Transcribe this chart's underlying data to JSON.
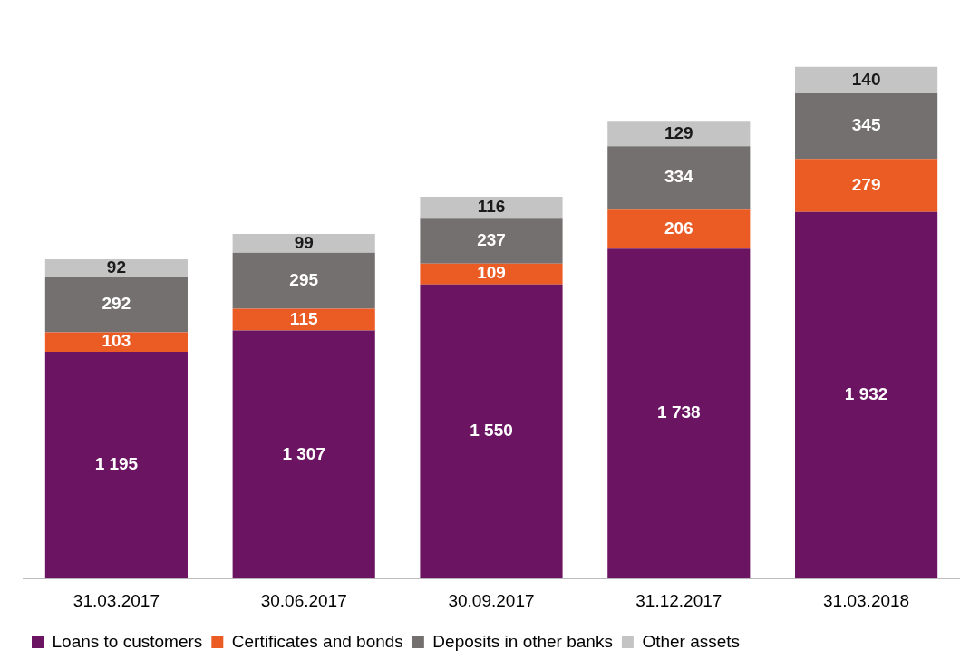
{
  "chart_data": {
    "type": "bar",
    "stacked": true,
    "categories": [
      "31.03.2017",
      "30.06.2017",
      "30.09.2017",
      "31.12.2017",
      "31.03.2018"
    ],
    "series": [
      {
        "name": "Loans to customers",
        "color": "#6b1562",
        "values": [
          1195,
          1307,
          1550,
          1738,
          1932
        ],
        "value_labels": [
          "1 195",
          "1 307",
          "1 550",
          "1 738",
          "1 932"
        ]
      },
      {
        "name": "Certificates and bonds",
        "color": "#eb5b24",
        "values": [
          103,
          115,
          109,
          206,
          279
        ],
        "value_labels": [
          "103",
          "115",
          "109",
          "206",
          "279"
        ]
      },
      {
        "name": "Deposits in other banks",
        "color": "#757070",
        "values": [
          292,
          295,
          237,
          334,
          345
        ],
        "value_labels": [
          "292",
          "295",
          "237",
          "334",
          "345"
        ]
      },
      {
        "name": "Other assets",
        "color": "#c4c4c4",
        "values": [
          92,
          99,
          116,
          129,
          140
        ],
        "value_labels": [
          "92",
          "99",
          "116",
          "129",
          "140"
        ]
      }
    ],
    "legend": "bottom",
    "grid": false,
    "tick_labels": "x"
  }
}
